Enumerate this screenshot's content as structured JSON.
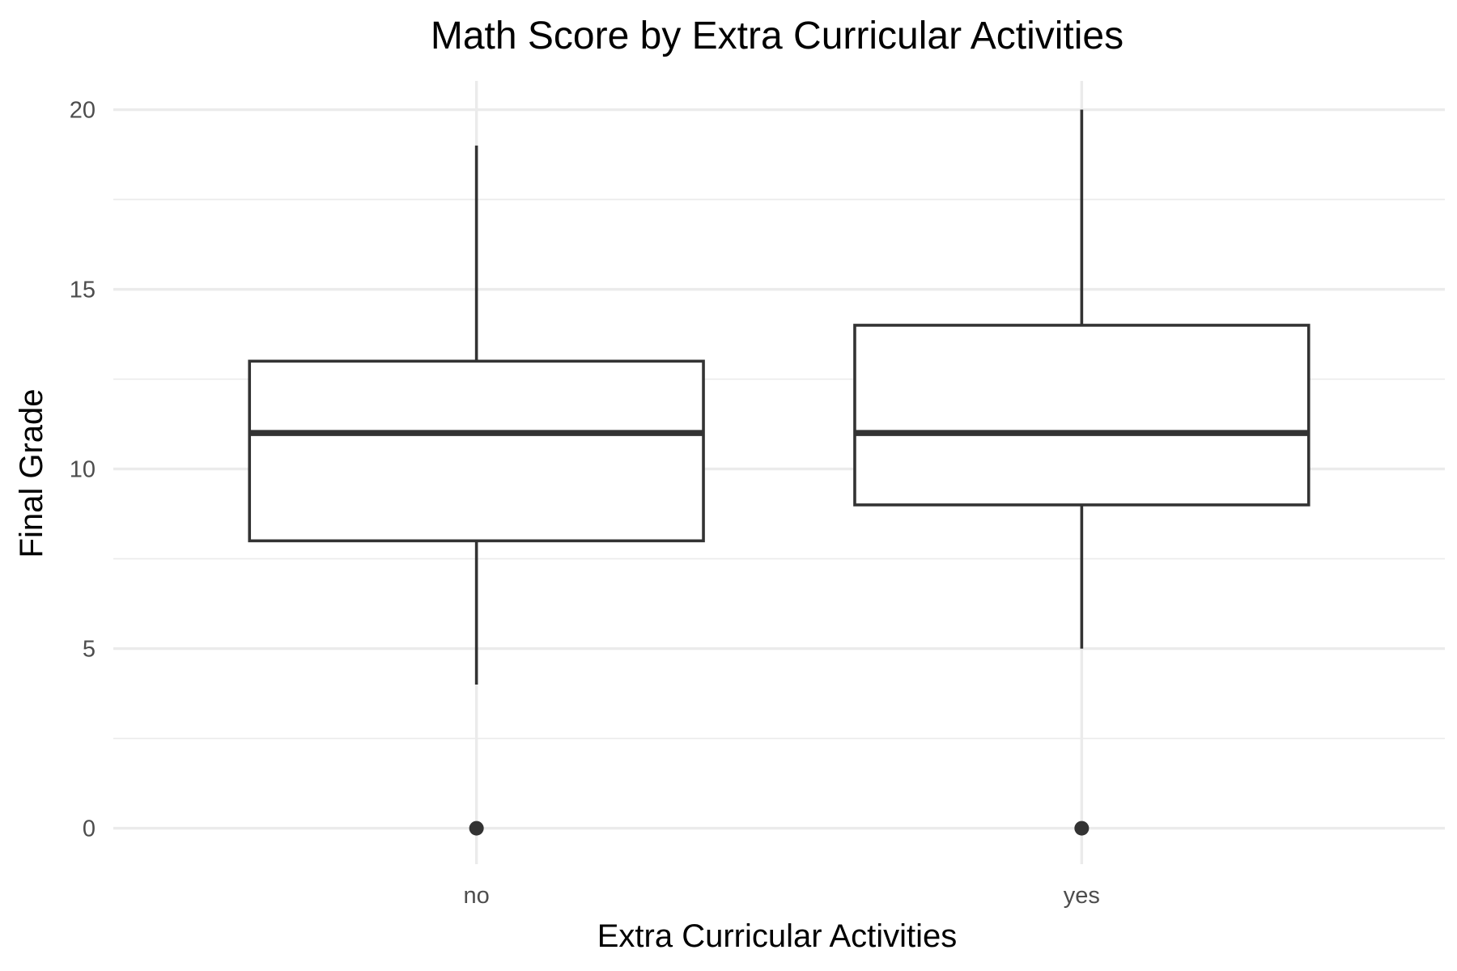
{
  "chart_data": {
    "type": "box",
    "title": "Math Score by Extra Curricular Activities",
    "xlabel": "Extra Curricular Activities",
    "ylabel": "Final Grade",
    "ylim": [
      -1,
      20.8
    ],
    "yticks": [
      "0",
      "5",
      "10",
      "15",
      "20"
    ],
    "grid": true,
    "categories": [
      "no",
      "yes"
    ],
    "boxes": [
      {
        "category": "no",
        "min": 4,
        "q1": 8,
        "median": 11,
        "q3": 13,
        "max": 19,
        "outliers": [
          0
        ]
      },
      {
        "category": "yes",
        "min": 5,
        "q1": 9,
        "median": 11,
        "q3": 14,
        "max": 20,
        "outliers": [
          0
        ]
      }
    ],
    "colors": {
      "box_stroke": "#333333",
      "box_fill": "#ffffff",
      "grid": "#ebebeb",
      "tick_text": "#4d4d4d",
      "title_text": "#000000"
    }
  }
}
